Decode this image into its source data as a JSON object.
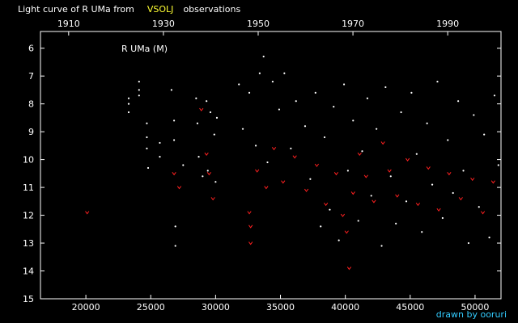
{
  "title": {
    "prefix": "Light curve of R UMa from",
    "source": "VSOLJ",
    "suffix": "observations"
  },
  "star_label": "R UMa (M)",
  "credit": "drawn by ooruri",
  "colors": {
    "background": "#000000",
    "frame": "#ffffff",
    "visual_points": "#ffffff",
    "fainter_than_points": "#ff2020",
    "source_text": "#ffff33",
    "credit_text": "#33ccff"
  },
  "chart_data": {
    "type": "scatter",
    "xlabel": "",
    "ylabel": "",
    "xlim": [
      16500,
      52000
    ],
    "ylim": [
      15,
      5.4
    ],
    "y_inverted": true,
    "grid": false,
    "x_ticks": [
      "20000",
      "25000",
      "30000",
      "35000",
      "40000",
      "45000",
      "50000"
    ],
    "x_tick_values": [
      20000,
      25000,
      30000,
      35000,
      40000,
      45000,
      50000
    ],
    "top_axis_ticks": [
      "1910",
      "1930",
      "1950",
      "1970",
      "1990"
    ],
    "top_axis_tick_values": [
      1910,
      1930,
      1950,
      1970,
      1990
    ],
    "top_axis_units": "year",
    "y_ticks": [
      "6",
      "7",
      "8",
      "9",
      "10",
      "11",
      "12",
      "13",
      "14",
      "15"
    ],
    "y_tick_values": [
      6,
      7,
      8,
      9,
      10,
      11,
      12,
      13,
      14,
      15
    ],
    "series": [
      {
        "marker": "dot",
        "color": "#ffffff",
        "points": [
          [
            23300,
            7.8
          ],
          [
            23300,
            8.0
          ],
          [
            23300,
            8.3
          ],
          [
            24100,
            7.2
          ],
          [
            24100,
            7.5
          ],
          [
            24100,
            7.7
          ],
          [
            24700,
            8.7
          ],
          [
            24700,
            9.2
          ],
          [
            24700,
            9.6
          ],
          [
            24800,
            10.3
          ],
          [
            25700,
            9.4
          ],
          [
            25700,
            9.9
          ],
          [
            26600,
            7.5
          ],
          [
            26800,
            8.6
          ],
          [
            26800,
            9.3
          ],
          [
            26900,
            12.4
          ],
          [
            26900,
            13.1
          ],
          [
            27500,
            10.2
          ],
          [
            28500,
            7.8
          ],
          [
            28600,
            8.7
          ],
          [
            28700,
            9.9
          ],
          [
            29000,
            10.6
          ],
          [
            29300,
            7.9
          ],
          [
            29400,
            10.4
          ],
          [
            29600,
            8.3
          ],
          [
            29900,
            9.1
          ],
          [
            30000,
            10.8
          ],
          [
            30100,
            8.5
          ],
          [
            31800,
            7.3
          ],
          [
            32100,
            8.9
          ],
          [
            32600,
            7.6
          ],
          [
            33100,
            9.5
          ],
          [
            33400,
            6.9
          ],
          [
            33700,
            6.3
          ],
          [
            34000,
            10.1
          ],
          [
            34400,
            7.2
          ],
          [
            34900,
            8.2
          ],
          [
            35300,
            6.9
          ],
          [
            35800,
            9.6
          ],
          [
            36200,
            7.9
          ],
          [
            36900,
            8.8
          ],
          [
            37300,
            10.7
          ],
          [
            37700,
            7.6
          ],
          [
            38100,
            12.4
          ],
          [
            38400,
            9.2
          ],
          [
            38800,
            11.8
          ],
          [
            39100,
            8.1
          ],
          [
            39500,
            12.9
          ],
          [
            39900,
            7.3
          ],
          [
            40200,
            10.4
          ],
          [
            40600,
            8.6
          ],
          [
            41000,
            12.2
          ],
          [
            41300,
            9.7
          ],
          [
            41700,
            7.8
          ],
          [
            42000,
            11.3
          ],
          [
            42400,
            8.9
          ],
          [
            42800,
            13.1
          ],
          [
            43100,
            7.4
          ],
          [
            43500,
            10.6
          ],
          [
            43900,
            12.3
          ],
          [
            44300,
            8.3
          ],
          [
            44700,
            11.5
          ],
          [
            45100,
            7.6
          ],
          [
            45500,
            9.8
          ],
          [
            45900,
            12.6
          ],
          [
            46300,
            8.7
          ],
          [
            46700,
            10.9
          ],
          [
            47100,
            7.2
          ],
          [
            47500,
            12.1
          ],
          [
            47900,
            9.3
          ],
          [
            48300,
            11.2
          ],
          [
            48700,
            7.9
          ],
          [
            49100,
            10.4
          ],
          [
            49500,
            13.0
          ],
          [
            49900,
            8.4
          ],
          [
            50300,
            11.7
          ],
          [
            50700,
            9.1
          ],
          [
            51100,
            12.8
          ],
          [
            51500,
            7.7
          ],
          [
            51800,
            10.2
          ]
        ]
      },
      {
        "marker": "v",
        "color": "#ff2020",
        "points": [
          [
            20100,
            11.9
          ],
          [
            26800,
            10.5
          ],
          [
            27200,
            11.0
          ],
          [
            28900,
            8.2
          ],
          [
            29300,
            9.8
          ],
          [
            29500,
            10.5
          ],
          [
            29800,
            11.4
          ],
          [
            32600,
            11.9
          ],
          [
            32700,
            12.4
          ],
          [
            32700,
            13.0
          ],
          [
            33200,
            10.4
          ],
          [
            33900,
            11.0
          ],
          [
            34500,
            9.6
          ],
          [
            35200,
            10.8
          ],
          [
            36100,
            9.9
          ],
          [
            37000,
            11.1
          ],
          [
            37800,
            10.2
          ],
          [
            38500,
            11.6
          ],
          [
            39300,
            10.5
          ],
          [
            39800,
            12.0
          ],
          [
            40100,
            12.6
          ],
          [
            40300,
            13.9
          ],
          [
            40600,
            11.2
          ],
          [
            41100,
            9.8
          ],
          [
            41600,
            10.6
          ],
          [
            42200,
            11.5
          ],
          [
            42900,
            9.4
          ],
          [
            43400,
            10.4
          ],
          [
            44000,
            11.3
          ],
          [
            44800,
            10.0
          ],
          [
            45600,
            11.6
          ],
          [
            46400,
            10.3
          ],
          [
            47200,
            11.8
          ],
          [
            48000,
            10.5
          ],
          [
            48900,
            11.4
          ],
          [
            49800,
            10.7
          ],
          [
            50600,
            11.9
          ],
          [
            51400,
            10.8
          ]
        ]
      }
    ]
  }
}
